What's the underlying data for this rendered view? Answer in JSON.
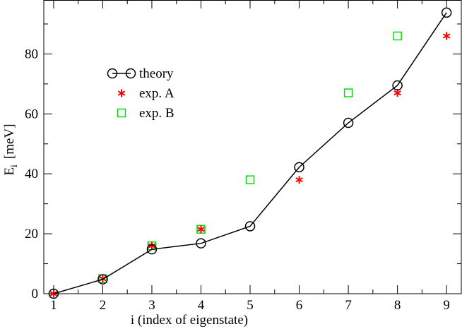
{
  "chart_data": {
    "type": "scatter",
    "xlabel": "i (index of eigenstate)",
    "ylabel": {
      "main": "E",
      "subscript": "i",
      "unit": "[meV]"
    },
    "xlim": [
      0.8,
      9.3
    ],
    "ylim": [
      0,
      98
    ],
    "xticks": [
      1,
      2,
      3,
      4,
      5,
      6,
      7,
      8,
      9
    ],
    "yticks": [
      0,
      20,
      40,
      60,
      80
    ],
    "grid": false,
    "legend_position": "upper-left",
    "series": [
      {
        "name": "theory",
        "style": "line-open-circle",
        "color": "#000000",
        "x": [
          1,
          2,
          3,
          4,
          5,
          6,
          7,
          8,
          9
        ],
        "y": [
          0,
          4.8,
          14.8,
          16.8,
          22.5,
          42.2,
          57.0,
          69.5,
          93.8
        ]
      },
      {
        "name": "exp. A",
        "style": "asterisk",
        "color": "#ff0000",
        "x": [
          1,
          2,
          3,
          4,
          6,
          8,
          9
        ],
        "y": [
          0,
          5.0,
          16.0,
          21.5,
          38.0,
          67.0,
          86.0
        ]
      },
      {
        "name": "exp. B",
        "style": "open-square",
        "color": "#00dd00",
        "x": [
          2,
          3,
          4,
          5,
          7,
          8
        ],
        "y": [
          5.0,
          16.0,
          21.5,
          38.0,
          67.0,
          86.0
        ]
      }
    ]
  }
}
